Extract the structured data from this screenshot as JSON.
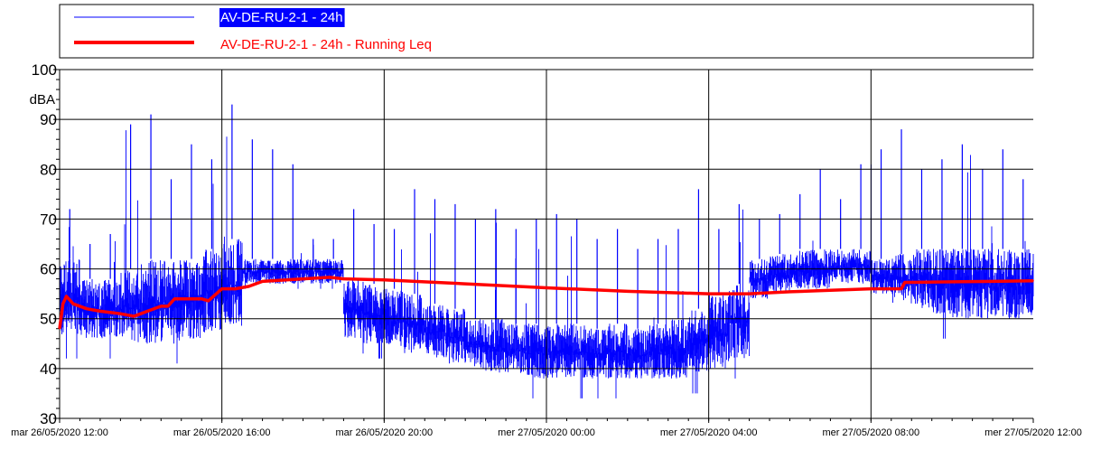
{
  "legend": {
    "placement": "top",
    "entries": [
      {
        "label": "AV-DE-RU-2-1 - 24h",
        "color": "#0000ff",
        "highlight": "#0000ff",
        "text_color": "#ffffff"
      },
      {
        "label": "AV-DE-RU-2-1 - 24h - Running Leq",
        "color": "#ff0000",
        "text_color": "#ff0000"
      }
    ]
  },
  "chart_data": {
    "type": "line",
    "title": "",
    "xlabel": "",
    "ylabel": "dBA",
    "grid": true,
    "ylim": [
      30,
      100
    ],
    "yticks": [
      30,
      40,
      50,
      60,
      70,
      80,
      90,
      100
    ],
    "xlim": [
      "2020-05-26T12:00",
      "2020-05-27T12:00"
    ],
    "xticks": [
      {
        "t": "2020-05-26T12:00",
        "label": "mar 26/05/2020 12:00"
      },
      {
        "t": "2020-05-26T16:00",
        "label": "mar 26/05/2020 16:00"
      },
      {
        "t": "2020-05-26T20:00",
        "label": "mar 26/05/2020 20:00"
      },
      {
        "t": "2020-05-27T00:00",
        "label": "mer 27/05/2020 00:00"
      },
      {
        "t": "2020-05-27T04:00",
        "label": "mer 27/05/2020 04:00"
      },
      {
        "t": "2020-05-27T08:00",
        "label": "mer 27/05/2020 08:00"
      },
      {
        "t": "2020-05-27T12:00",
        "label": "mer 27/05/2020 12:00"
      }
    ],
    "series": [
      {
        "name": "AV-DE-RU-2-1 - 24h",
        "color": "#0000ff",
        "x": [
          "2020-05-26T12:00",
          "2020-05-26T12:30",
          "2020-05-26T13:00",
          "2020-05-26T13:30",
          "2020-05-26T14:00",
          "2020-05-26T14:30",
          "2020-05-26T15:00",
          "2020-05-26T15:30",
          "2020-05-26T16:00",
          "2020-05-26T16:30",
          "2020-05-26T17:00",
          "2020-05-26T17:30",
          "2020-05-26T18:00",
          "2020-05-26T18:30",
          "2020-05-26T19:00",
          "2020-05-26T19:30",
          "2020-05-26T20:00",
          "2020-05-26T20:30",
          "2020-05-26T21:00",
          "2020-05-26T21:30",
          "2020-05-26T22:00",
          "2020-05-26T22:30",
          "2020-05-26T23:00",
          "2020-05-26T23:30",
          "2020-05-27T00:00",
          "2020-05-27T00:30",
          "2020-05-27T01:00",
          "2020-05-27T01:30",
          "2020-05-27T02:00",
          "2020-05-27T02:30",
          "2020-05-27T03:00",
          "2020-05-27T03:30",
          "2020-05-27T04:00",
          "2020-05-27T04:30",
          "2020-05-27T05:00",
          "2020-05-27T05:30",
          "2020-05-27T06:00",
          "2020-05-27T06:30",
          "2020-05-27T07:00",
          "2020-05-27T07:30",
          "2020-05-27T08:00",
          "2020-05-27T08:30",
          "2020-05-27T09:00",
          "2020-05-27T09:30",
          "2020-05-27T10:00",
          "2020-05-27T10:30",
          "2020-05-27T11:00",
          "2020-05-27T11:30"
        ],
        "min": [
          42,
          42,
          42,
          41,
          41,
          41,
          42,
          43,
          44,
          56,
          56,
          56,
          56,
          56,
          43,
          42,
          41,
          40,
          39,
          37,
          36,
          35,
          35,
          34,
          34,
          34,
          34,
          34,
          34,
          34,
          34,
          35,
          36,
          38,
          50,
          52,
          53,
          53,
          54,
          54,
          50,
          48,
          47,
          46,
          45,
          45,
          45,
          45
        ],
        "max": [
          72,
          65,
          67,
          89,
          91,
          78,
          85,
          82,
          93,
          86,
          84,
          81,
          66,
          66,
          72,
          69,
          68,
          76,
          74,
          73,
          70,
          72,
          68,
          70,
          71,
          70,
          66,
          68,
          64,
          66,
          68,
          76,
          68,
          73,
          70,
          71,
          75,
          80,
          74,
          81,
          84,
          88,
          80,
          82,
          85,
          80,
          84,
          78
        ],
        "typical_low": [
          46,
          46,
          46,
          45,
          45,
          45,
          46,
          47,
          48,
          57,
          57,
          57,
          57,
          57,
          46,
          45,
          44,
          43,
          42,
          41,
          40,
          39,
          39,
          38,
          38,
          38,
          38,
          38,
          38,
          38,
          38,
          39,
          40,
          42,
          54,
          55,
          56,
          56,
          57,
          57,
          55,
          53,
          52,
          51,
          50,
          50,
          50,
          50
        ],
        "typical_high": [
          62,
          58,
          58,
          60,
          62,
          62,
          62,
          64,
          66,
          62,
          62,
          62,
          62,
          62,
          58,
          57,
          56,
          55,
          53,
          52,
          50,
          50,
          49,
          49,
          49,
          49,
          48,
          49,
          48,
          49,
          50,
          52,
          55,
          57,
          62,
          63,
          64,
          64,
          64,
          64,
          62,
          63,
          64,
          64,
          64,
          64,
          64,
          64
        ]
      },
      {
        "name": "AV-DE-RU-2-1 - 24h - Running Leq",
        "color": "#ff0000",
        "x": [
          "2020-05-26T12:00",
          "2020-05-26T12:05",
          "2020-05-26T12:10",
          "2020-05-26T12:20",
          "2020-05-26T12:40",
          "2020-05-26T13:00",
          "2020-05-26T13:30",
          "2020-05-26T13:50",
          "2020-05-26T14:00",
          "2020-05-26T14:10",
          "2020-05-26T14:30",
          "2020-05-26T14:40",
          "2020-05-26T14:50",
          "2020-05-26T15:30",
          "2020-05-26T15:40",
          "2020-05-26T16:00",
          "2020-05-26T16:20",
          "2020-05-26T16:40",
          "2020-05-26T17:00",
          "2020-05-26T18:00",
          "2020-05-26T18:40",
          "2020-05-26T19:00",
          "2020-05-26T20:00",
          "2020-05-26T22:00",
          "2020-05-27T00:00",
          "2020-05-27T02:00",
          "2020-05-27T04:00",
          "2020-05-27T05:00",
          "2020-05-27T06:00",
          "2020-05-27T07:00",
          "2020-05-27T08:00",
          "2020-05-27T08:45",
          "2020-05-27T08:50",
          "2020-05-27T10:00",
          "2020-05-27T11:00",
          "2020-05-27T12:00"
        ],
        "y": [
          48,
          53,
          54.5,
          53,
          52,
          51.5,
          51,
          50.5,
          51,
          51.5,
          52.5,
          52.5,
          54,
          54,
          53.6,
          56,
          56,
          56.5,
          57.5,
          58,
          58.3,
          58,
          57.8,
          57,
          56.2,
          55.5,
          55,
          55,
          55.4,
          55.7,
          56,
          56,
          57.3,
          57.4,
          57.5,
          57.6
        ]
      }
    ]
  }
}
